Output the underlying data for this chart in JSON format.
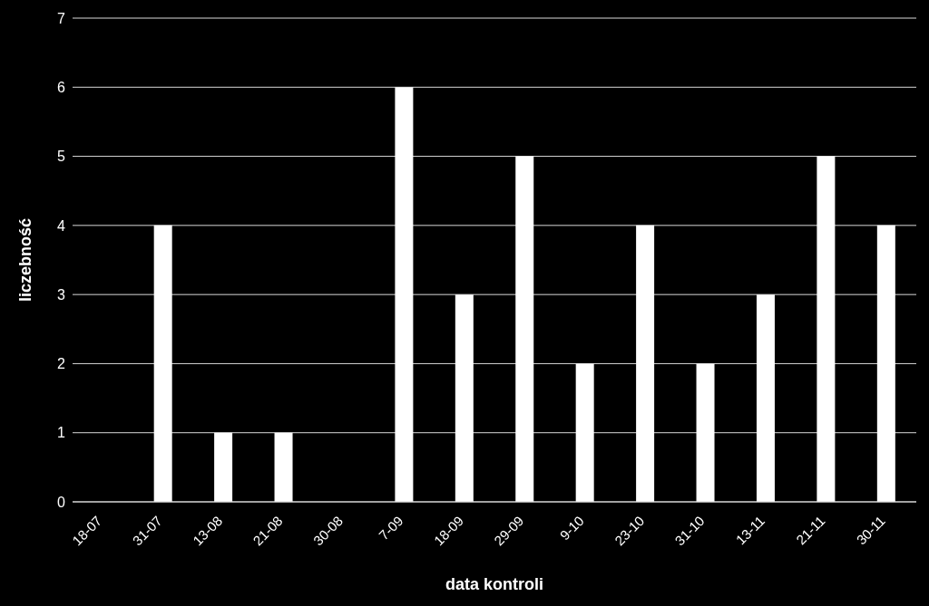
{
  "chart_data": {
    "type": "bar",
    "xlabel": "data kontroli",
    "ylabel": "liczebność",
    "categories": [
      "18-07",
      "31-07",
      "13-08",
      "21-08",
      "30-08",
      "7-09",
      "18-09",
      "29-09",
      "9-10",
      "23-10",
      "31-10",
      "13-11",
      "21-11",
      "30-11"
    ],
    "values": [
      0,
      4,
      1,
      1,
      0,
      6,
      3,
      5,
      2,
      4,
      2,
      3,
      5,
      4
    ],
    "color": "#ffffff",
    "ylim": [
      0,
      7
    ],
    "yticks": [
      0,
      1,
      2,
      3,
      4,
      5,
      6,
      7
    ],
    "grid": "y"
  }
}
